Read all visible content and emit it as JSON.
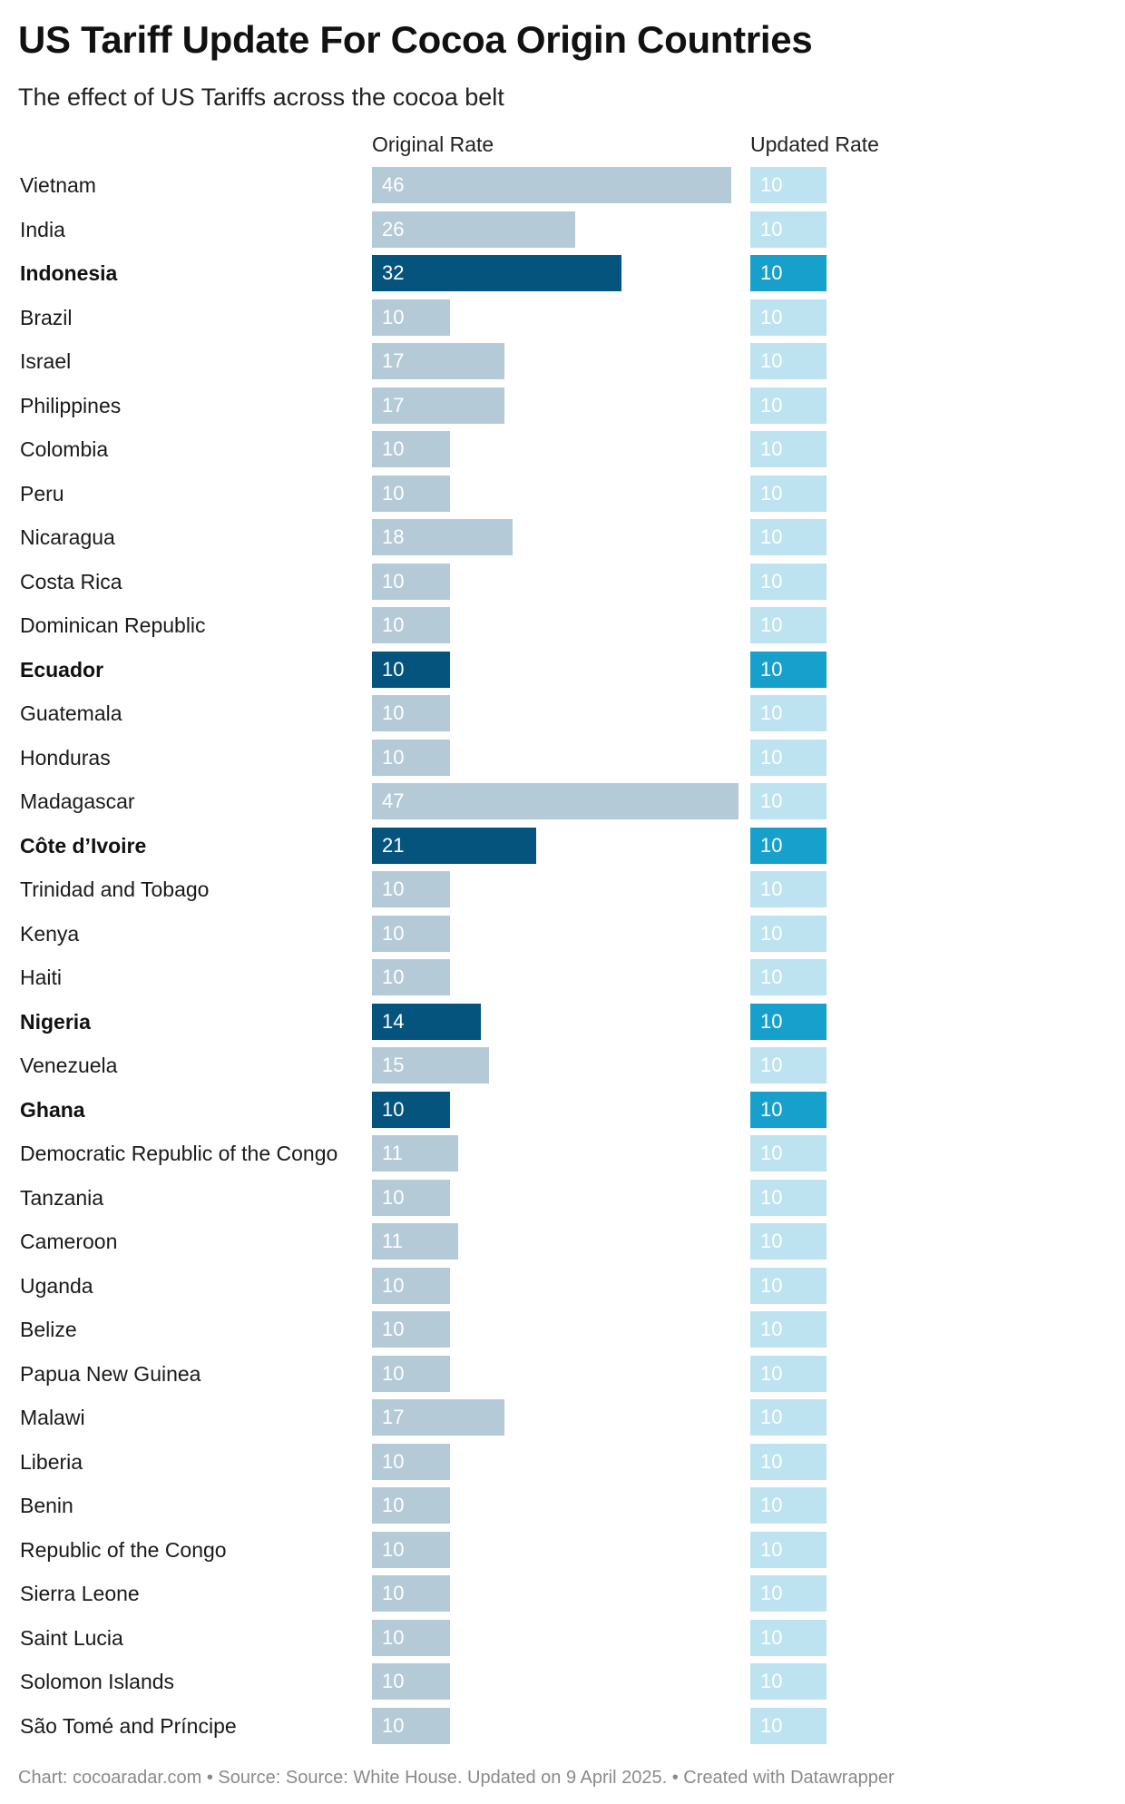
{
  "header": {
    "title": "US Tariff Update For Cocoa Origin Countries",
    "subtitle": "The effect of US Tariffs across the cocoa belt"
  },
  "chart_data": {
    "type": "bar",
    "title": "US Tariff Update For Cocoa Origin Countries",
    "subtitle": "The effect of US Tariffs across the cocoa belt",
    "xlabel": "",
    "ylabel": "",
    "orientation": "horizontal",
    "xlim": [
      0,
      47
    ],
    "categories": [
      "Vietnam",
      "India",
      "Indonesia",
      "Brazil",
      "Israel",
      "Philippines",
      "Colombia",
      "Peru",
      "Nicaragua",
      "Costa Rica",
      "Dominican Republic",
      "Ecuador",
      "Guatemala",
      "Honduras",
      "Madagascar",
      "Côte d’Ivoire",
      "Trinidad and Tobago",
      "Kenya",
      "Haiti",
      "Nigeria",
      "Venezuela",
      "Ghana",
      "Democratic Republic of the Congo",
      "Tanzania",
      "Cameroon",
      "Uganda",
      "Belize",
      "Papua New Guinea",
      "Malawi",
      "Liberia",
      "Benin",
      "Republic of the Congo",
      "Sierra Leone",
      "Saint Lucia",
      "Solomon Islands",
      "São Tomé and Príncipe"
    ],
    "highlighted": [
      "Indonesia",
      "Ecuador",
      "Côte d’Ivoire",
      "Nigeria",
      "Ghana"
    ],
    "series": [
      {
        "name": "Original Rate",
        "values": [
          46,
          26,
          32,
          10,
          17,
          17,
          10,
          10,
          18,
          10,
          10,
          10,
          10,
          10,
          47,
          21,
          10,
          10,
          10,
          14,
          15,
          10,
          11,
          10,
          11,
          10,
          10,
          10,
          17,
          10,
          10,
          10,
          10,
          10,
          10,
          10
        ]
      },
      {
        "name": "Updated Rate",
        "values": [
          10,
          10,
          10,
          10,
          10,
          10,
          10,
          10,
          10,
          10,
          10,
          10,
          10,
          10,
          10,
          10,
          10,
          10,
          10,
          10,
          10,
          10,
          10,
          10,
          10,
          10,
          10,
          10,
          10,
          10,
          10,
          10,
          10,
          10,
          10,
          10
        ]
      }
    ]
  },
  "colors": {
    "original": "#b4cad6",
    "original_highlight": "#04547e",
    "updated": "#bce3ef",
    "updated_highlight": "#18a0cd"
  },
  "footer": {
    "text": "Chart: cocoaradar.com • Source: Source: White House. Updated on 9 April 2025. • Created with Datawrapper"
  }
}
